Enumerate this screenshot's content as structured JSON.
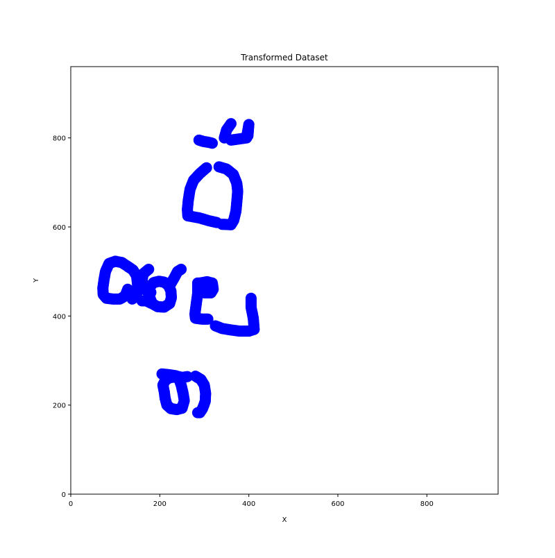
{
  "chart_data": {
    "type": "scatter",
    "title": "Transformed Dataset",
    "xlabel": "X",
    "ylabel": "Y",
    "xlim": [
      0,
      960
    ],
    "ylim": [
      0,
      960
    ],
    "xticks": [
      0,
      200,
      400,
      600,
      800
    ],
    "yticks": [
      0,
      200,
      400,
      600,
      800
    ],
    "grid": false,
    "legend": "none",
    "series": [
      {
        "color": "#0000ff",
        "marker": "filled-circle",
        "strokes": [
          [
            [
              288,
              795
            ],
            [
              298,
              792
            ],
            [
              310,
              790
            ],
            [
              318,
              788
            ]
          ],
          [
            [
              360,
              795
            ],
            [
              395,
              800
            ],
            [
              400,
              830
            ],
            [
              398,
              805
            ]
          ],
          [
            [
              345,
              800
            ],
            [
              350,
              818
            ],
            [
              360,
              832
            ]
          ],
          [
            [
              305,
              733
            ],
            [
              290,
              720
            ],
            [
              276,
              705
            ],
            [
              268,
              685
            ],
            [
              264,
              660
            ],
            [
              262,
              640
            ],
            [
              263,
              625
            ]
          ],
          [
            [
              263,
              625
            ],
            [
              290,
              620
            ],
            [
              310,
              614
            ],
            [
              328,
              610
            ]
          ],
          [
            [
              333,
              735
            ],
            [
              350,
              730
            ],
            [
              365,
              718
            ],
            [
              373,
              698
            ],
            [
              375,
              680
            ],
            [
              373,
              656
            ],
            [
              371,
              635
            ],
            [
              366,
              615
            ],
            [
              360,
              605
            ],
            [
              340,
              606
            ]
          ],
          [
            [
              130,
              510
            ],
            [
              115,
              520
            ],
            [
              100,
              523
            ],
            [
              86,
              518
            ],
            [
              78,
              500
            ],
            [
              75,
              483
            ],
            [
              72,
              463
            ],
            [
              73,
              448
            ],
            [
              80,
              440
            ],
            [
              95,
              438
            ],
            [
              110,
              438
            ],
            [
              122,
              445
            ],
            [
              128,
              460
            ]
          ],
          [
            [
              130,
              510
            ],
            [
              140,
              503
            ],
            [
              148,
              490
            ],
            [
              150,
              470
            ],
            [
              150,
              455
            ],
            [
              145,
              443
            ],
            [
              138,
              438
            ]
          ],
          [
            [
              175,
              505
            ],
            [
              163,
              495
            ],
            [
              160,
              480
            ],
            [
              164,
              462
            ],
            [
              172,
              455
            ],
            [
              180,
              453
            ]
          ],
          [
            [
              178,
              440
            ],
            [
              183,
              428
            ],
            [
              195,
              421
            ],
            [
              210,
              420
            ],
            [
              222,
              428
            ],
            [
              226,
              441
            ],
            [
              225,
              456
            ],
            [
              220,
              468
            ],
            [
              210,
              476
            ],
            [
              198,
              478
            ],
            [
              186,
              475
            ],
            [
              178,
              466
            ],
            [
              176,
              453
            ],
            [
              178,
              440
            ]
          ],
          [
            [
              222,
              468
            ],
            [
              232,
              485
            ],
            [
              240,
              500
            ],
            [
              248,
              505
            ]
          ],
          [
            [
              182,
              428
            ],
            [
              170,
              434
            ],
            [
              160,
              434
            ]
          ],
          [
            [
              290,
              474
            ],
            [
              306,
              477
            ],
            [
              318,
              474
            ],
            [
              320,
              460
            ],
            [
              315,
              452
            ],
            [
              300,
              452
            ],
            [
              295,
              455
            ]
          ],
          [
            [
              285,
              474
            ],
            [
              285,
              450
            ],
            [
              282,
              428
            ],
            [
              279,
              405
            ],
            [
              280,
              395
            ],
            [
              295,
              393
            ],
            [
              308,
              393
            ]
          ],
          [
            [
              405,
              440
            ],
            [
              405,
              420
            ],
            [
              410,
              395
            ],
            [
              412,
              370
            ],
            [
              400,
              366
            ],
            [
              380,
              366
            ],
            [
              358,
              369
            ],
            [
              340,
              372
            ],
            [
              325,
              378
            ]
          ],
          [
            [
              240,
              263
            ],
            [
              222,
              262
            ],
            [
              212,
              255
            ],
            [
              207,
              245
            ],
            [
              210,
              230
            ],
            [
              212,
              215
            ],
            [
              216,
              200
            ],
            [
              225,
              192
            ],
            [
              238,
              190
            ],
            [
              250,
              193
            ],
            [
              255,
              210
            ],
            [
              252,
              228
            ],
            [
              248,
              245
            ],
            [
              243,
              259
            ]
          ],
          [
            [
              205,
              270
            ],
            [
              222,
              268
            ],
            [
              235,
              266
            ],
            [
              250,
              262
            ],
            [
              262,
              264
            ]
          ],
          [
            [
              280,
              265
            ],
            [
              292,
              258
            ],
            [
              300,
              245
            ],
            [
              303,
              226
            ],
            [
              302,
              208
            ],
            [
              296,
              192
            ],
            [
              290,
              183
            ],
            [
              285,
              183
            ]
          ]
        ]
      }
    ]
  }
}
